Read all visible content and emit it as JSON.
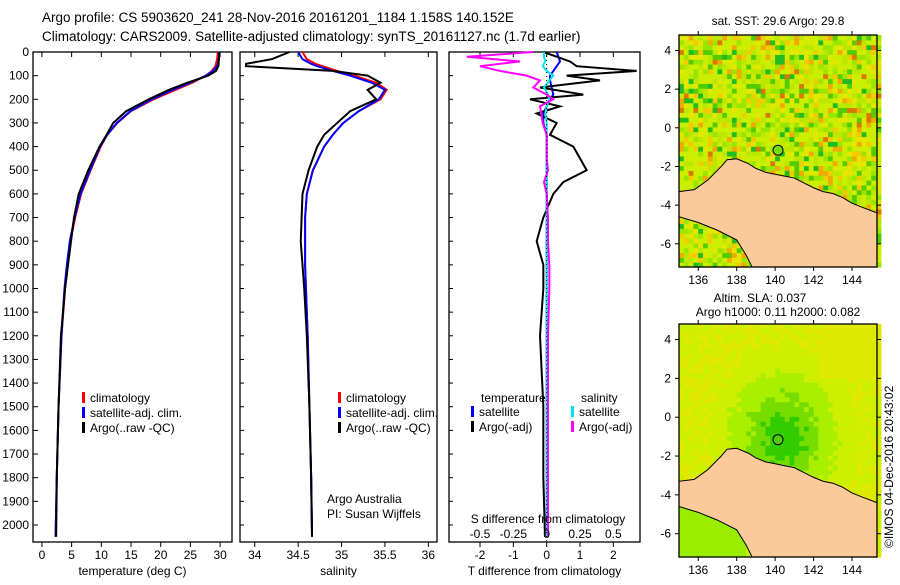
{
  "title_line1": "Argo profile: CS 5903620_241 28-Nov-2016 20161201_1184 1.158S 140.152E",
  "title_line2": "Climatology: CARS2009. Satellite-adjusted climatology: synTS_20161127.nc (1.7d earlier)",
  "credit": "©IMOS 04-Dec-2016 20:43:02",
  "colors": {
    "climatology": "#ff0000",
    "satellite": "#0000ff",
    "argo": "#000000",
    "sal_satellite": "#00e5e5",
    "sal_argo": "#ff00ff",
    "land": "#fcc99a"
  },
  "chart_data": [
    {
      "type": "line",
      "id": "temperature",
      "xlabel": "temperature (deg C)",
      "ylabel": "",
      "xlim": [
        -1.5,
        32
      ],
      "ylim": [
        2072,
        0
      ],
      "xticks": [
        "0",
        "5",
        "10",
        "15",
        "20",
        "25",
        "30"
      ],
      "xtick_values": [
        0,
        5,
        10,
        15,
        20,
        25,
        30
      ],
      "yticks": [
        "0",
        "100",
        "200",
        "300",
        "400",
        "500",
        "600",
        "700",
        "800",
        "900",
        "1000",
        "1100",
        "1200",
        "1300",
        "1400",
        "1500",
        "1600",
        "1700",
        "1800",
        "1900",
        "2000"
      ],
      "ytick_values": [
        0,
        100,
        200,
        300,
        400,
        500,
        600,
        700,
        800,
        900,
        1000,
        1100,
        1200,
        1300,
        1400,
        1500,
        1600,
        1700,
        1800,
        1900,
        2000
      ],
      "legend": [
        "climatology",
        "satellite-adj. clim.",
        "Argo(..raw -QC)"
      ],
      "depth": [
        0,
        30,
        60,
        80,
        100,
        130,
        160,
        200,
        250,
        300,
        350,
        400,
        500,
        600,
        700,
        800,
        900,
        1000,
        1200,
        1500,
        1800,
        2050
      ],
      "series": [
        {
          "name": "climatology",
          "values": [
            29.6,
            29.5,
            29.2,
            28.6,
            27.6,
            25.3,
            22.5,
            18.8,
            15.0,
            12.7,
            11.0,
            9.9,
            8.2,
            6.6,
            5.6,
            4.8,
            4.3,
            3.9,
            3.3,
            2.8,
            2.5,
            2.3
          ]
        },
        {
          "name": "satellite-adj. clim.",
          "values": [
            29.9,
            29.8,
            29.5,
            28.8,
            27.6,
            25.0,
            22.0,
            18.5,
            14.9,
            12.6,
            11.0,
            9.8,
            8.1,
            6.5,
            5.5,
            4.7,
            4.2,
            3.8,
            3.3,
            2.8,
            2.5,
            2.3
          ]
        },
        {
          "name": "Argo(..raw -QC)",
          "values": [
            29.8,
            29.8,
            29.7,
            29.3,
            28.0,
            24.5,
            21.4,
            18.0,
            14.2,
            12.0,
            10.9,
            9.7,
            7.8,
            6.2,
            5.4,
            4.9,
            4.4,
            3.9,
            3.2,
            2.8,
            2.5,
            2.4
          ]
        }
      ]
    },
    {
      "type": "line",
      "id": "salinity",
      "xlabel": "salinity",
      "xlim": [
        33.83,
        36.1
      ],
      "ylim": [
        2072,
        0
      ],
      "xticks": [
        "34",
        "34.5",
        "35",
        "35.5",
        "36"
      ],
      "xtick_values": [
        34,
        34.5,
        35,
        35.5,
        36
      ],
      "legend": [
        "climatology",
        "satellite-adj. clim.",
        "Argo(..raw -QC)"
      ],
      "annotation": [
        "Argo Australia",
        "PI: Susan Wijffels"
      ],
      "depth": [
        0,
        30,
        50,
        60,
        80,
        100,
        130,
        160,
        200,
        250,
        300,
        350,
        400,
        500,
        600,
        700,
        800,
        900,
        1000,
        1200,
        1500,
        1800,
        2050
      ],
      "series": [
        {
          "name": "climatology",
          "values": [
            34.55,
            34.6,
            34.7,
            34.78,
            34.95,
            35.15,
            35.4,
            35.52,
            35.45,
            35.2,
            35.02,
            34.9,
            34.8,
            34.67,
            34.6,
            34.58,
            34.58,
            34.58,
            34.59,
            34.61,
            34.63,
            34.65,
            34.66
          ]
        },
        {
          "name": "satellite-adj. clim.",
          "values": [
            34.5,
            34.55,
            34.65,
            34.72,
            34.9,
            35.1,
            35.35,
            35.5,
            35.43,
            35.2,
            35.02,
            34.9,
            34.8,
            34.67,
            34.6,
            34.58,
            34.58,
            34.58,
            34.59,
            34.61,
            34.63,
            34.65,
            34.66
          ]
        },
        {
          "name": "Argo(..raw -QC)",
          "values": [
            34.4,
            34.2,
            33.9,
            33.9,
            34.9,
            35.3,
            35.45,
            35.3,
            35.4,
            35.1,
            34.95,
            34.8,
            34.72,
            34.62,
            34.55,
            34.54,
            34.53,
            34.55,
            34.57,
            34.6,
            34.63,
            34.65,
            34.66
          ]
        }
      ]
    },
    {
      "type": "line",
      "id": "difference",
      "xlabel": "T difference from climatology",
      "xlabel2": "S difference from climatology",
      "xlim": [
        -2.93,
        2.8
      ],
      "ylim": [
        2072,
        0
      ],
      "xticks": [
        "-2",
        "-1",
        "0",
        "1",
        "2"
      ],
      "xtick_values": [
        -2,
        -1,
        0,
        1,
        2
      ],
      "s_ticks": [
        "-0.5",
        "-0.25",
        "0",
        "0.25",
        "0.5"
      ],
      "s_tick_values": [
        -0.5,
        -0.25,
        0,
        0.25,
        0.5
      ],
      "legend_temperature": [
        "temperature",
        "satellite",
        "Argo(-adj)"
      ],
      "legend_salinity": [
        "salinity",
        "satellite",
        "Argo(-adj)"
      ],
      "depth": [
        0,
        20,
        40,
        60,
        80,
        100,
        120,
        150,
        180,
        200,
        230,
        260,
        300,
        350,
        400,
        450,
        500,
        550,
        600,
        700,
        800,
        900,
        1000,
        1200,
        1500,
        1800,
        2050
      ],
      "series": [
        {
          "name": "T satellite",
          "values": [
            0.3,
            0.35,
            0.4,
            0.3,
            0.2,
            0.1,
            0.1,
            0.15,
            0.2,
            0.1,
            0.0,
            -0.1,
            -0.1,
            0,
            0,
            0,
            0,
            0,
            0,
            0,
            0,
            0,
            0,
            0,
            0,
            0,
            0
          ]
        },
        {
          "name": "T Argo(-adj)",
          "values": [
            -0.1,
            0.3,
            0.7,
            0.9,
            2.7,
            0.6,
            1.6,
            -0.2,
            1.1,
            -0.5,
            0.4,
            -0.3,
            0.3,
            0.1,
            0.8,
            1.0,
            1.2,
            0.5,
            0.2,
            -0.1,
            -0.3,
            -0.1,
            -0.1,
            -0.2,
            -0.1,
            -0.1,
            -0.05
          ]
        },
        {
          "name": "S satellite",
          "values": [
            -0.02,
            -0.02,
            -0.01,
            -0.03,
            0,
            0.05,
            0.02,
            -0.02,
            0.01,
            0.02,
            0,
            -0.01,
            0,
            0,
            0,
            0,
            0,
            0,
            0,
            0,
            0,
            0,
            0,
            0,
            0,
            0,
            0
          ]
        },
        {
          "name": "S Argo(-adj)",
          "values": [
            -0.1,
            -0.6,
            -0.2,
            -0.5,
            -0.35,
            -0.15,
            -0.05,
            -0.1,
            0,
            0.05,
            -0.05,
            -0.04,
            -0.03,
            0,
            0,
            0,
            0.01,
            -0.02,
            0,
            0.01,
            0.01,
            0.02,
            0.02,
            0.01,
            0.01,
            0.01,
            0.01
          ]
        }
      ]
    },
    {
      "type": "heatmap",
      "id": "sst_map",
      "title": "sat. SST: 29.6  Argo: 29.8",
      "xlim": [
        135,
        145.3
      ],
      "ylim": [
        -7.2,
        4.8
      ],
      "xticks": [
        "136",
        "138",
        "140",
        "142",
        "144"
      ],
      "xtick_values": [
        136,
        138,
        140,
        142,
        144
      ],
      "yticks": [
        "4",
        "2",
        "0",
        "-2",
        "-4",
        "-6"
      ],
      "ytick_values": [
        4,
        2,
        0,
        -2,
        -4,
        -6
      ],
      "argo_position": [
        140.152,
        -1.158
      ]
    },
    {
      "type": "heatmap",
      "id": "sla_map",
      "title": "Altim. SLA: 0.037",
      "subtitle": "Argo h1000: 0.11 h2000: 0.082",
      "xlim": [
        135,
        145.3
      ],
      "ylim": [
        -7.2,
        4.8
      ],
      "xticks": [
        "136",
        "138",
        "140",
        "142",
        "144"
      ],
      "xtick_values": [
        136,
        138,
        140,
        142,
        144
      ],
      "yticks": [
        "4",
        "2",
        "0",
        "-2",
        "-4",
        "-6"
      ],
      "ytick_values": [
        4,
        2,
        0,
        -2,
        -4,
        -6
      ],
      "argo_position": [
        140.152,
        -1.158
      ]
    }
  ],
  "coastline": [
    [
      145.3,
      -4.4
    ],
    [
      144.5,
      -4.1
    ],
    [
      144,
      -3.9
    ],
    [
      143.5,
      -3.6
    ],
    [
      143,
      -3.4
    ],
    [
      142.5,
      -3.3
    ],
    [
      142,
      -3.1
    ],
    [
      141.5,
      -2.85
    ],
    [
      141,
      -2.6
    ],
    [
      140.5,
      -2.5
    ],
    [
      140,
      -2.4
    ],
    [
      139.5,
      -2.3
    ],
    [
      139,
      -2.1
    ],
    [
      138.6,
      -1.85
    ],
    [
      138,
      -1.6
    ],
    [
      137.5,
      -1.65
    ],
    [
      137.2,
      -2.0
    ],
    [
      136.5,
      -2.7
    ],
    [
      135.8,
      -3.2
    ],
    [
      135,
      -3.3
    ],
    [
      135,
      -4.6
    ],
    [
      136,
      -4.9
    ],
    [
      137,
      -5.3
    ],
    [
      138,
      -5.8
    ],
    [
      138.5,
      -6.6
    ],
    [
      138.8,
      -7.2
    ],
    [
      145.3,
      -7.2
    ]
  ]
}
